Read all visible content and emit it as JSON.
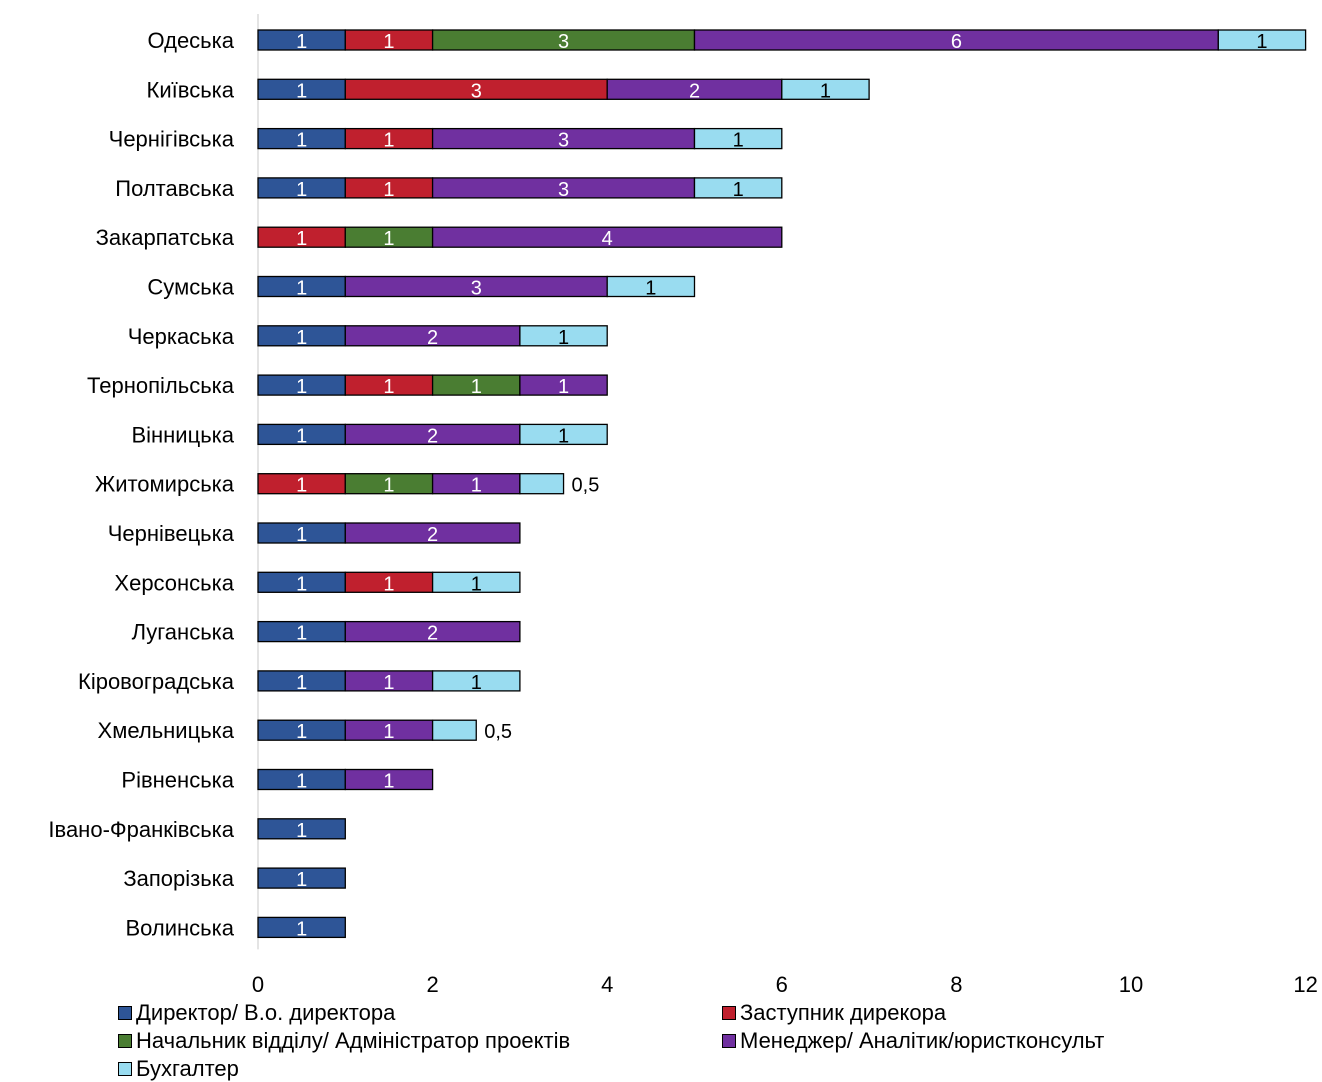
{
  "chart_data": {
    "type": "bar",
    "orientation": "horizontal",
    "stacked": true,
    "categories": [
      "Одеська",
      "Київська",
      "Чернігівська",
      "Полтавська",
      "Закарпатська",
      "Сумська",
      "Черкаська",
      "Тернопільська",
      "Вінницька",
      "Житомирська",
      "Чернівецька",
      "Херсонська",
      "Луганська",
      "Кіровоградська",
      "Хмельницька",
      "Рівненська",
      "Івано-Франківська",
      "Запорізька",
      "Волинська"
    ],
    "series": [
      {
        "name": "Директор/ В.о. директора",
        "color": "#2e5597",
        "label_color": "#ffffff",
        "values": [
          1,
          1,
          1,
          1,
          0,
          1,
          1,
          1,
          1,
          0,
          1,
          1,
          1,
          1,
          1,
          1,
          1,
          1,
          1
        ]
      },
      {
        "name": "Заступник дирекора",
        "color": "#c0202e",
        "label_color": "#ffffff",
        "values": [
          1,
          3,
          1,
          1,
          1,
          0,
          0,
          1,
          0,
          1,
          0,
          1,
          0,
          0,
          0,
          0,
          0,
          0,
          0
        ]
      },
      {
        "name": "Начальник відділу/ Адміністратор проектів",
        "color": "#4a7d32",
        "label_color": "#ffffff",
        "values": [
          3,
          0,
          0,
          0,
          1,
          0,
          0,
          1,
          0,
          1,
          0,
          0,
          0,
          0,
          0,
          0,
          0,
          0,
          0
        ]
      },
      {
        "name": "Менеджер/ Аналітик/юристконсульт",
        "color": "#7030a0",
        "label_color": "#ffffff",
        "values": [
          6,
          2,
          3,
          3,
          4,
          3,
          2,
          1,
          2,
          1,
          2,
          0,
          2,
          1,
          1,
          1,
          0,
          0,
          0
        ]
      },
      {
        "name": "Бухгалтер",
        "color": "#99dcf0",
        "label_color": "#000000",
        "values": [
          1,
          1,
          1,
          1,
          0,
          1,
          1,
          0,
          1,
          0.5,
          0,
          1,
          0,
          1,
          0.5,
          0,
          0,
          0,
          0
        ]
      }
    ],
    "value_labels": {
      "outside_values": {
        "Житомирська": "0,5",
        "Хмельницька": "0,5"
      }
    },
    "xlim": [
      0,
      12
    ],
    "x_ticks": [
      "0",
      "2",
      "4",
      "6",
      "8",
      "10",
      "12"
    ],
    "xlabel": "",
    "ylabel": "",
    "title": "",
    "grid": false,
    "legend_position": "bottom"
  }
}
